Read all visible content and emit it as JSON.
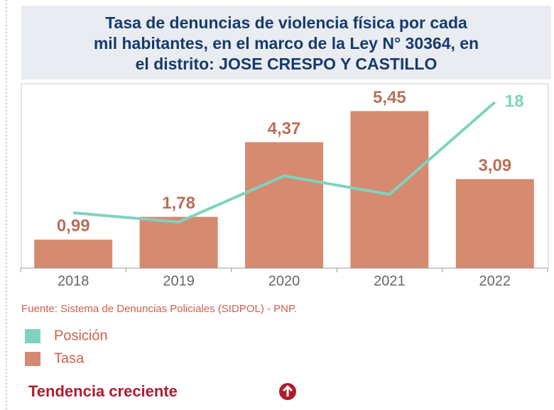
{
  "chart_data": {
    "type": "bar",
    "title_lines": [
      "Tasa de denuncias de violencia física por cada",
      "mil habitantes, en el marco de la Ley N° 30364, en",
      "el distrito: JOSE CRESPO Y CASTILLO"
    ],
    "categories": [
      "2018",
      "2019",
      "2020",
      "2021",
      "2022"
    ],
    "series": [
      {
        "name": "Posición",
        "type": "line",
        "axis": "y2",
        "color": "#7fd3bd",
        "values": [
          6,
          5,
          10,
          8,
          18
        ]
      },
      {
        "name": "Tasa",
        "type": "bar",
        "color": "#d68a70",
        "values": [
          0.99,
          1.78,
          4.37,
          5.45,
          3.09
        ],
        "value_labels": [
          "0,99",
          "1,78",
          "4,37",
          "5,45",
          "3,09"
        ]
      }
    ],
    "ylim": [
      0,
      6.4
    ],
    "y2lim": [
      0,
      20
    ],
    "source": "Fuente: Sistema de Denuncias Policiales (SIDPOL) - PNP.",
    "trend": "Tendencia creciente"
  }
}
